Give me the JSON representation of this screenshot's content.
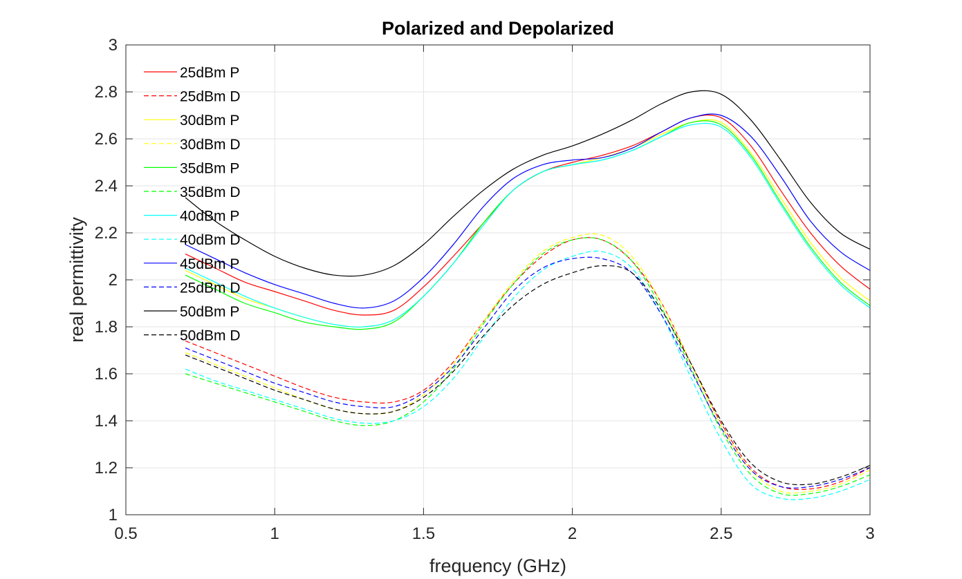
{
  "chart_data": {
    "type": "line",
    "title": "Polarized and Depolarized",
    "xlabel": "frequency (GHz)",
    "ylabel": "real permittivity",
    "xlim": [
      0.5,
      3
    ],
    "ylim": [
      1,
      3
    ],
    "xticks": [
      0.5,
      1,
      1.5,
      2,
      2.5,
      3
    ],
    "xtick_labels": [
      "0.5",
      "1",
      "1.5",
      "2",
      "2.5",
      "3"
    ],
    "yticks": [
      1,
      1.2,
      1.4,
      1.6,
      1.8,
      2,
      2.2,
      2.4,
      2.6,
      2.8,
      3
    ],
    "ytick_labels": [
      "1",
      "1.2",
      "1.4",
      "1.6",
      "1.8",
      "2",
      "2.2",
      "2.4",
      "2.6",
      "2.8",
      "3"
    ],
    "grid": true,
    "legend_position": "top-left",
    "x": [
      0.7,
      0.8,
      0.9,
      1.0,
      1.1,
      1.2,
      1.3,
      1.4,
      1.5,
      1.6,
      1.7,
      1.8,
      1.9,
      2.0,
      2.1,
      2.2,
      2.3,
      2.4,
      2.5,
      2.6,
      2.7,
      2.8,
      2.9,
      3.0
    ],
    "series": [
      {
        "name": "25dBm P",
        "color": "#ff0000",
        "style": "solid",
        "values": [
          2.11,
          2.05,
          1.99,
          1.95,
          1.91,
          1.87,
          1.85,
          1.87,
          1.97,
          2.1,
          2.24,
          2.38,
          2.46,
          2.5,
          2.53,
          2.57,
          2.63,
          2.69,
          2.69,
          2.57,
          2.38,
          2.2,
          2.06,
          1.96
        ]
      },
      {
        "name": "25dBm D",
        "color": "#ff0000",
        "style": "dashed",
        "values": [
          1.74,
          1.69,
          1.64,
          1.59,
          1.54,
          1.5,
          1.48,
          1.48,
          1.53,
          1.65,
          1.82,
          1.98,
          2.1,
          2.17,
          2.17,
          2.08,
          1.9,
          1.64,
          1.39,
          1.2,
          1.12,
          1.11,
          1.14,
          1.2
        ]
      },
      {
        "name": "30dBm P",
        "color": "#ffff00",
        "style": "solid",
        "values": [
          2.04,
          1.98,
          1.92,
          1.88,
          1.84,
          1.81,
          1.8,
          1.83,
          1.93,
          2.07,
          2.24,
          2.38,
          2.46,
          2.49,
          2.52,
          2.56,
          2.62,
          2.67,
          2.67,
          2.54,
          2.35,
          2.16,
          2.01,
          1.91
        ]
      },
      {
        "name": "30dBm D",
        "color": "#ffff00",
        "style": "dashed",
        "values": [
          1.69,
          1.64,
          1.59,
          1.54,
          1.49,
          1.45,
          1.43,
          1.44,
          1.51,
          1.64,
          1.82,
          1.99,
          2.12,
          2.18,
          2.19,
          2.1,
          1.9,
          1.64,
          1.38,
          1.19,
          1.1,
          1.1,
          1.13,
          1.19
        ]
      },
      {
        "name": "35dBm P",
        "color": "#00ff00",
        "style": "solid",
        "values": [
          2.02,
          1.96,
          1.9,
          1.86,
          1.82,
          1.8,
          1.79,
          1.82,
          1.93,
          2.07,
          2.24,
          2.38,
          2.46,
          2.49,
          2.51,
          2.55,
          2.61,
          2.67,
          2.66,
          2.53,
          2.33,
          2.14,
          1.99,
          1.89
        ]
      },
      {
        "name": "35dBm D",
        "color": "#00ff00",
        "style": "dashed",
        "values": [
          1.6,
          1.56,
          1.52,
          1.48,
          1.44,
          1.4,
          1.38,
          1.4,
          1.48,
          1.62,
          1.81,
          1.98,
          2.11,
          2.17,
          2.17,
          2.08,
          1.88,
          1.62,
          1.36,
          1.17,
          1.09,
          1.09,
          1.12,
          1.17
        ]
      },
      {
        "name": "40dBm P",
        "color": "#00ffff",
        "style": "solid",
        "values": [
          2.05,
          1.99,
          1.93,
          1.88,
          1.84,
          1.81,
          1.8,
          1.83,
          1.93,
          2.07,
          2.23,
          2.38,
          2.46,
          2.49,
          2.51,
          2.55,
          2.61,
          2.66,
          2.65,
          2.52,
          2.32,
          2.13,
          1.98,
          1.88
        ]
      },
      {
        "name": "40dBm D",
        "color": "#00ffff",
        "style": "dashed",
        "values": [
          1.62,
          1.57,
          1.53,
          1.49,
          1.45,
          1.41,
          1.39,
          1.4,
          1.46,
          1.58,
          1.75,
          1.92,
          2.04,
          2.1,
          2.12,
          2.05,
          1.85,
          1.58,
          1.32,
          1.13,
          1.07,
          1.07,
          1.1,
          1.15
        ]
      },
      {
        "name": "45dBm P",
        "color": "#0000ff",
        "style": "solid",
        "values": [
          2.15,
          2.09,
          2.03,
          1.98,
          1.94,
          1.9,
          1.88,
          1.91,
          2.01,
          2.15,
          2.31,
          2.43,
          2.49,
          2.51,
          2.52,
          2.56,
          2.63,
          2.69,
          2.7,
          2.61,
          2.44,
          2.25,
          2.12,
          2.04
        ]
      },
      {
        "name": "25dBm D",
        "color": "#0000ff",
        "style": "dashed",
        "values": [
          1.71,
          1.66,
          1.61,
          1.56,
          1.52,
          1.48,
          1.46,
          1.46,
          1.52,
          1.63,
          1.79,
          1.95,
          2.05,
          2.09,
          2.09,
          2.03,
          1.85,
          1.61,
          1.37,
          1.19,
          1.12,
          1.12,
          1.15,
          1.2
        ]
      },
      {
        "name": "50dBm P",
        "color": "#000000",
        "style": "solid",
        "values": [
          2.35,
          2.25,
          2.17,
          2.1,
          2.05,
          2.02,
          2.02,
          2.06,
          2.15,
          2.27,
          2.38,
          2.47,
          2.53,
          2.57,
          2.62,
          2.68,
          2.75,
          2.8,
          2.79,
          2.68,
          2.51,
          2.33,
          2.2,
          2.13
        ]
      },
      {
        "name": "50dBm D",
        "color": "#000000",
        "style": "dashed",
        "values": [
          1.68,
          1.63,
          1.58,
          1.53,
          1.49,
          1.45,
          1.43,
          1.44,
          1.5,
          1.61,
          1.76,
          1.89,
          1.98,
          2.03,
          2.06,
          2.03,
          1.87,
          1.64,
          1.4,
          1.22,
          1.14,
          1.13,
          1.16,
          1.21
        ]
      }
    ]
  }
}
